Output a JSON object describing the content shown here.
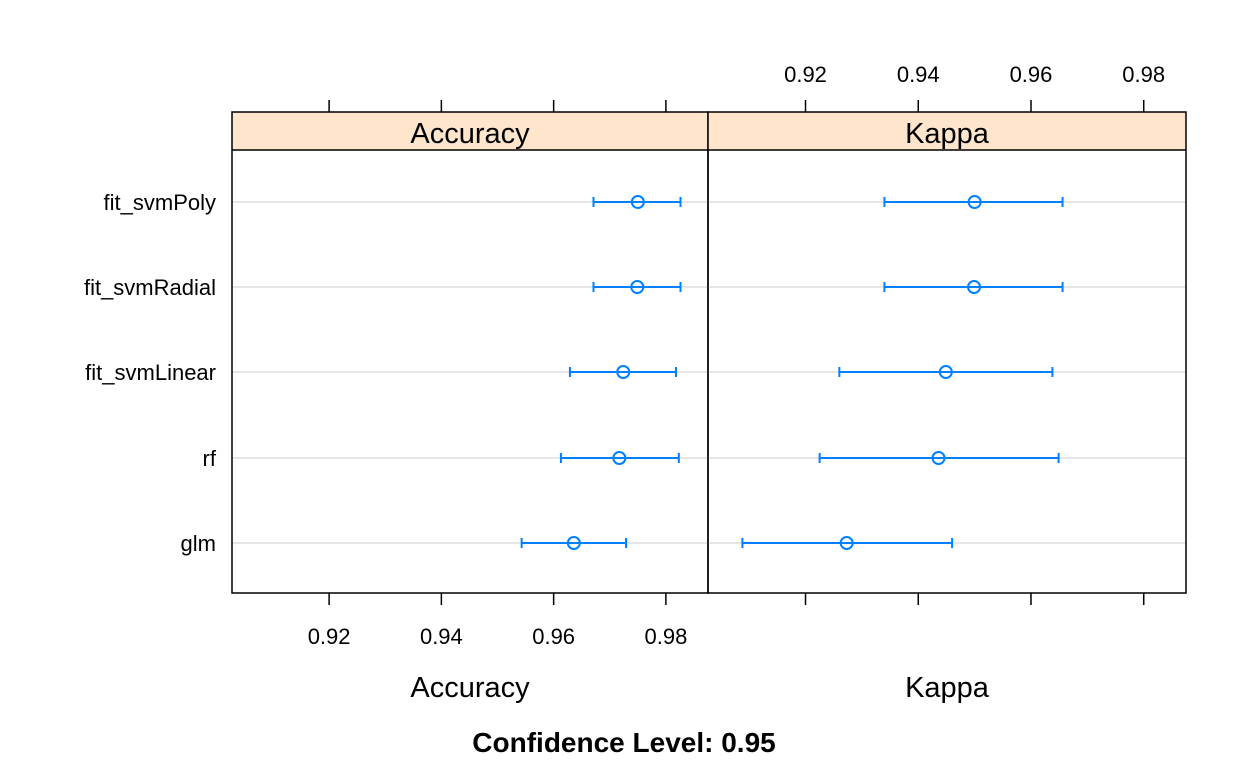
{
  "chart_data": {
    "type": "dotplot-errorbar",
    "categories": [
      "fit_svmPoly",
      "fit_svmRadial",
      "fit_svmLinear",
      "rf",
      "glm"
    ],
    "panels": [
      {
        "name": "Accuracy",
        "xlabel": "Accuracy",
        "ticks": [
          0.92,
          0.94,
          0.96,
          0.98
        ],
        "tick_labels": [
          "0.92",
          "0.94",
          "0.96",
          "0.98"
        ],
        "xlim": [
          0.9027,
          0.9875
        ],
        "points": [
          {
            "category": "fit_svmPoly",
            "estimate": 0.975,
            "lower": 0.9671,
            "upper": 0.9826
          },
          {
            "category": "fit_svmRadial",
            "estimate": 0.9749,
            "lower": 0.9671,
            "upper": 0.9826
          },
          {
            "category": "fit_svmLinear",
            "estimate": 0.9724,
            "lower": 0.9629,
            "upper": 0.9818
          },
          {
            "category": "rf",
            "estimate": 0.9717,
            "lower": 0.9613,
            "upper": 0.9823
          },
          {
            "category": "glm",
            "estimate": 0.9636,
            "lower": 0.9543,
            "upper": 0.9729
          }
        ]
      },
      {
        "name": "Kappa",
        "xlabel": "Kappa",
        "ticks": [
          0.92,
          0.94,
          0.96,
          0.98
        ],
        "tick_labels": [
          "0.92",
          "0.94",
          "0.96",
          "0.98"
        ],
        "xlim": [
          0.9027,
          0.9875
        ],
        "points": [
          {
            "category": "fit_svmPoly",
            "estimate": 0.95,
            "lower": 0.934,
            "upper": 0.9656
          },
          {
            "category": "fit_svmRadial",
            "estimate": 0.9499,
            "lower": 0.934,
            "upper": 0.9656
          },
          {
            "category": "fit_svmLinear",
            "estimate": 0.9449,
            "lower": 0.926,
            "upper": 0.9638
          },
          {
            "category": "rf",
            "estimate": 0.9436,
            "lower": 0.9225,
            "upper": 0.9649
          },
          {
            "category": "glm",
            "estimate": 0.9273,
            "lower": 0.9088,
            "upper": 0.946
          }
        ]
      }
    ],
    "caption": "Confidence Level: 0.95",
    "grid": "horizontal",
    "colors": {
      "strip": "#ffe5cc",
      "marker": "#0080ff",
      "gridline": "#e6e6e6"
    }
  }
}
